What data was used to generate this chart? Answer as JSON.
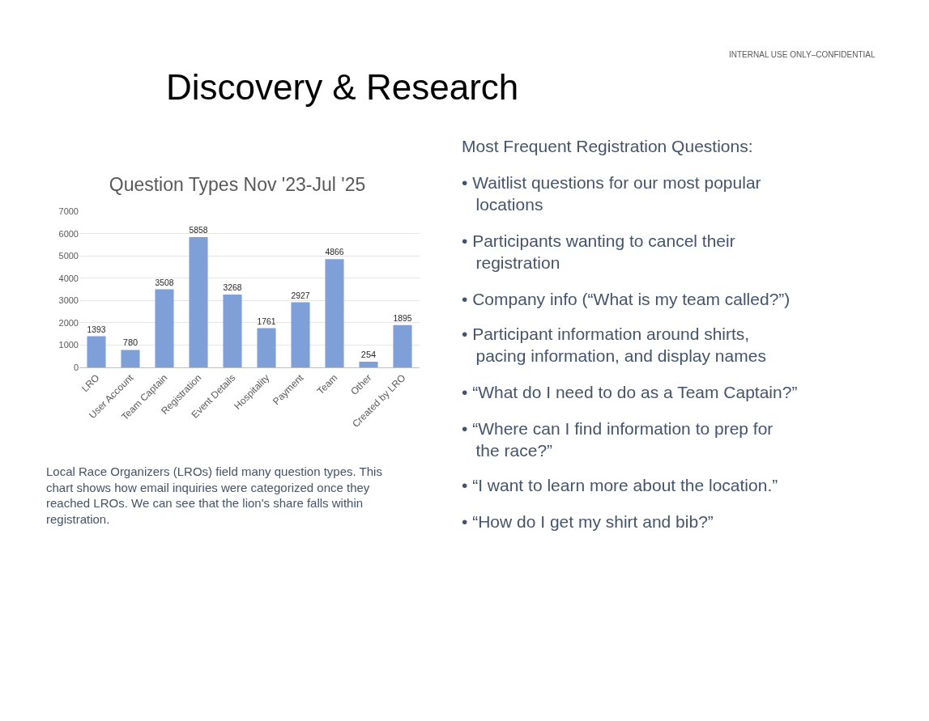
{
  "chart_data": {
    "type": "bar",
    "title": "Question Types Nov '23-Jul '25",
    "categories": [
      "LRO",
      "User Account",
      "Team Captain",
      "Registration",
      "Event Details",
      "Hospitality",
      "Payment",
      "Team",
      "Other",
      "Created by LRO"
    ],
    "values": [
      1393,
      780,
      3508,
      5858,
      3268,
      1761,
      2927,
      4866,
      254,
      1895
    ],
    "color": "#7f9fd9",
    "ylim": [
      0,
      7000
    ],
    "yticks": [
      0,
      1000,
      2000,
      3000,
      4000,
      5000,
      6000,
      7000
    ],
    "grid": "y",
    "data_labels": true,
    "annotations": [
      "INTERNAL USE ONLY–CONFIDENTIAL",
      "Discovery & Research",
      "Local Race Organizers (LROs) field many question types. This chart shows how email inquiries were categorized once they reached LROs. We can see that the lion's share falls within registration.",
      "Most Frequent Registration Questions:",
      "• Waitlist questions for our most popular locations",
      "• Participants wanting to cancel their registration",
      "• Company info (“What is my team called?”)",
      "• Participant information around shirts, pacing information, and display names",
      "• “What do I need to do as a Team Captain?”",
      "• “Where can I find information to prep for the race?”",
      "• “I want to learn more about the location.”",
      "• “How do I get my shirt and bib?”"
    ]
  }
}
